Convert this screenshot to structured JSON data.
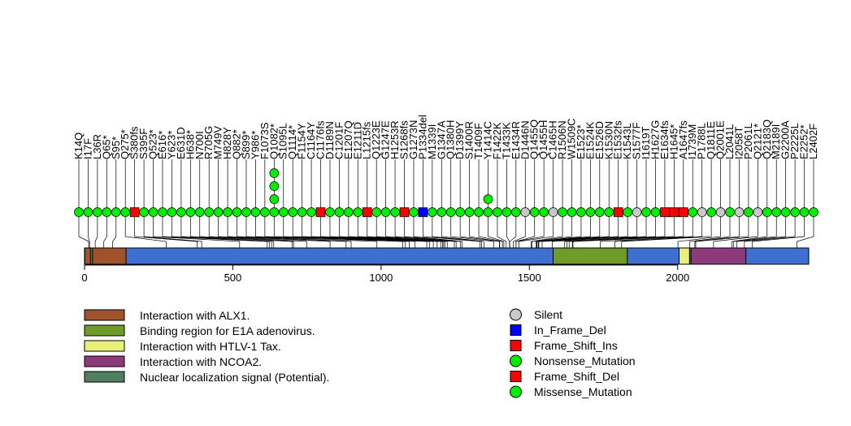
{
  "chart_data": {
    "type": "lollipop",
    "title": "",
    "xlabel": "",
    "ylabel": "",
    "xlim": [
      0,
      2442
    ],
    "x_ticks": [
      0,
      500,
      1000,
      1500,
      2000
    ],
    "x_tick_labels": [
      "0",
      "500",
      "1000",
      "1500",
      "2000"
    ],
    "protein_length": 2442,
    "domains": [
      {
        "name": "Interaction with ALX1.",
        "start": 1,
        "end": 140,
        "color": "#a0522d"
      },
      {
        "name": "Binding region for E1A adenovirus.",
        "start": 1580,
        "end": 1830,
        "color": "#6e9b2a"
      },
      {
        "name": "Interaction with HTLV-1 Tax.",
        "start": 2005,
        "end": 2040,
        "color": "#e8f07a"
      },
      {
        "name": "Interaction with NCOA2.",
        "start": 2045,
        "end": 2230,
        "color": "#8b3a7a"
      },
      {
        "name": "Nuclear localization signal (Potential).",
        "start": 20,
        "end": 27,
        "color": "#4f7f5f"
      }
    ],
    "backbone_color": "#3f6fcf",
    "mutation_types": [
      {
        "name": "Silent",
        "shape": "circle",
        "color": "#c8c8c8"
      },
      {
        "name": "In_Frame_Del",
        "shape": "square",
        "color": "#0000ff"
      },
      {
        "name": "Frame_Shift_Ins",
        "shape": "square",
        "color": "#ff0000"
      },
      {
        "name": "Nonsense_Mutation",
        "shape": "circle",
        "color": "#00ee00"
      },
      {
        "name": "Frame_Shift_Del",
        "shape": "square",
        "color": "#ff0000"
      },
      {
        "name": "Missense_Mutation",
        "shape": "circle",
        "color": "#00ee00"
      }
    ],
    "mutations": [
      {
        "label": "K14Q",
        "position": 14,
        "type": "Missense_Mutation",
        "count": 1
      },
      {
        "label": "I17F",
        "position": 17,
        "type": "Missense_Mutation",
        "count": 1
      },
      {
        "label": "L36R",
        "position": 36,
        "type": "Missense_Mutation",
        "count": 1
      },
      {
        "label": "Q65*",
        "position": 65,
        "type": "Nonsense_Mutation",
        "count": 1
      },
      {
        "label": "S95*",
        "position": 95,
        "type": "Nonsense_Mutation",
        "count": 1
      },
      {
        "label": "Q275*",
        "position": 275,
        "type": "Nonsense_Mutation",
        "count": 1
      },
      {
        "label": "S380fs",
        "position": 380,
        "type": "Frame_Shift_Del",
        "count": 1
      },
      {
        "label": "S395F",
        "position": 395,
        "type": "Missense_Mutation",
        "count": 1
      },
      {
        "label": "Q523*",
        "position": 523,
        "type": "Nonsense_Mutation",
        "count": 1
      },
      {
        "label": "E616*",
        "position": 616,
        "type": "Nonsense_Mutation",
        "count": 1
      },
      {
        "label": "Y623*",
        "position": 623,
        "type": "Nonsense_Mutation",
        "count": 1
      },
      {
        "label": "E631D",
        "position": 631,
        "type": "Missense_Mutation",
        "count": 1
      },
      {
        "label": "H638*",
        "position": 638,
        "type": "Nonsense_Mutation",
        "count": 1
      },
      {
        "label": "N700I",
        "position": 700,
        "type": "Missense_Mutation",
        "count": 1
      },
      {
        "label": "R705G",
        "position": 705,
        "type": "Missense_Mutation",
        "count": 1
      },
      {
        "label": "M749V",
        "position": 749,
        "type": "Missense_Mutation",
        "count": 1
      },
      {
        "label": "H828Y",
        "position": 828,
        "type": "Missense_Mutation",
        "count": 1
      },
      {
        "label": "Q882*",
        "position": 882,
        "type": "Nonsense_Mutation",
        "count": 1
      },
      {
        "label": "S899*",
        "position": 899,
        "type": "Nonsense_Mutation",
        "count": 1
      },
      {
        "label": "Y986*",
        "position": 986,
        "type": "Nonsense_Mutation",
        "count": 1
      },
      {
        "label": "F1073S",
        "position": 1073,
        "type": "Missense_Mutation",
        "count": 1
      },
      {
        "label": "Q1082*",
        "position": 1082,
        "type": "Nonsense_Mutation",
        "count": 4
      },
      {
        "label": "S1095L",
        "position": 1095,
        "type": "Missense_Mutation",
        "count": 1
      },
      {
        "label": "Q1114*",
        "position": 1114,
        "type": "Nonsense_Mutation",
        "count": 1
      },
      {
        "label": "F1154Y",
        "position": 1154,
        "type": "Missense_Mutation",
        "count": 1
      },
      {
        "label": "C1164Y",
        "position": 1164,
        "type": "Missense_Mutation",
        "count": 1
      },
      {
        "label": "C1176fs",
        "position": 1176,
        "type": "Frame_Shift_Del",
        "count": 1
      },
      {
        "label": "D1189N",
        "position": 1189,
        "type": "Missense_Mutation",
        "count": 1
      },
      {
        "label": "C1201F",
        "position": 1201,
        "type": "Missense_Mutation",
        "count": 1
      },
      {
        "label": "E1207Q",
        "position": 1207,
        "type": "Missense_Mutation",
        "count": 1
      },
      {
        "label": "E1211D",
        "position": 1211,
        "type": "Missense_Mutation",
        "count": 1
      },
      {
        "label": "L1215fs",
        "position": 1215,
        "type": "Frame_Shift_Del",
        "count": 1
      },
      {
        "label": "Q1223E",
        "position": 1223,
        "type": "Missense_Mutation",
        "count": 1
      },
      {
        "label": "G1247E",
        "position": 1247,
        "type": "Missense_Mutation",
        "count": 1
      },
      {
        "label": "H1253R",
        "position": 1253,
        "type": "Missense_Mutation",
        "count": 1
      },
      {
        "label": "S1268fs",
        "position": 1268,
        "type": "Frame_Shift_Del",
        "count": 1
      },
      {
        "label": "G1273N",
        "position": 1273,
        "type": "Missense_Mutation",
        "count": 1
      },
      {
        "label": "P1334del",
        "position": 1334,
        "type": "In_Frame_Del",
        "count": 1
      },
      {
        "label": "M1339I",
        "position": 1339,
        "type": "Missense_Mutation",
        "count": 1
      },
      {
        "label": "G1347A",
        "position": 1347,
        "type": "Missense_Mutation",
        "count": 1
      },
      {
        "label": "Q1380H",
        "position": 1380,
        "type": "Missense_Mutation",
        "count": 1
      },
      {
        "label": "D1399Y",
        "position": 1399,
        "type": "Missense_Mutation",
        "count": 1
      },
      {
        "label": "S1400R",
        "position": 1400,
        "type": "Missense_Mutation",
        "count": 1
      },
      {
        "label": "T1409F",
        "position": 1409,
        "type": "Missense_Mutation",
        "count": 1
      },
      {
        "label": "Y1414C",
        "position": 1414,
        "type": "Missense_Mutation",
        "count": 2
      },
      {
        "label": "F1422K",
        "position": 1422,
        "type": "Missense_Mutation",
        "count": 1
      },
      {
        "label": "T1433K",
        "position": 1433,
        "type": "Missense_Mutation",
        "count": 1
      },
      {
        "label": "E1434R",
        "position": 1434,
        "type": "Missense_Mutation",
        "count": 1
      },
      {
        "label": "D1446N",
        "position": 1446,
        "type": "Silent",
        "count": 1
      },
      {
        "label": "Q1455Q",
        "position": 1455,
        "type": "Missense_Mutation",
        "count": 1
      },
      {
        "label": "Q1455H",
        "position": 1455,
        "type": "Missense_Mutation",
        "count": 1
      },
      {
        "label": "C1465H",
        "position": 1465,
        "type": "Silent",
        "count": 1
      },
      {
        "label": "R1506N",
        "position": 1506,
        "type": "Missense_Mutation",
        "count": 1
      },
      {
        "label": "W1509C",
        "position": 1509,
        "type": "Missense_Mutation",
        "count": 1
      },
      {
        "label": "E1523*",
        "position": 1523,
        "type": "Nonsense_Mutation",
        "count": 1
      },
      {
        "label": "E1524K",
        "position": 1524,
        "type": "Missense_Mutation",
        "count": 1
      },
      {
        "label": "E1526D",
        "position": 1526,
        "type": "Missense_Mutation",
        "count": 1
      },
      {
        "label": "K1530N",
        "position": 1530,
        "type": "Missense_Mutation",
        "count": 1
      },
      {
        "label": "E1532fs",
        "position": 1532,
        "type": "Frame_Shift_Del",
        "count": 1
      },
      {
        "label": "K1543L",
        "position": 1543,
        "type": "Missense_Mutation",
        "count": 1
      },
      {
        "label": "S1577F",
        "position": 1577,
        "type": "Silent",
        "count": 1
      },
      {
        "label": "I1619T",
        "position": 1619,
        "type": "Missense_Mutation",
        "count": 1
      },
      {
        "label": "H1627G",
        "position": 1627,
        "type": "Missense_Mutation",
        "count": 1
      },
      {
        "label": "E1634fs",
        "position": 1634,
        "type": "Frame_Shift_Del",
        "count": 1
      },
      {
        "label": "H1645*",
        "position": 1645,
        "type": "Frame_Shift_Ins",
        "count": 1
      },
      {
        "label": "A1647fs",
        "position": 1647,
        "type": "Frame_Shift_Ins",
        "count": 1
      },
      {
        "label": "I1739M",
        "position": 1739,
        "type": "Missense_Mutation",
        "count": 1
      },
      {
        "label": "P1788L",
        "position": 1788,
        "type": "Silent",
        "count": 1
      },
      {
        "label": "Q1811E",
        "position": 1811,
        "type": "Missense_Mutation",
        "count": 1
      },
      {
        "label": "Q2001E",
        "position": 2001,
        "type": "Silent",
        "count": 1
      },
      {
        "label": "L2041L",
        "position": 2041,
        "type": "Missense_Mutation",
        "count": 1
      },
      {
        "label": "I2058T",
        "position": 2058,
        "type": "Silent",
        "count": 1
      },
      {
        "label": "P2061L",
        "position": 2061,
        "type": "Missense_Mutation",
        "count": 1
      },
      {
        "label": "Q2121*",
        "position": 2121,
        "type": "Silent",
        "count": 1
      },
      {
        "label": "Q2183Q",
        "position": 2183,
        "type": "Missense_Mutation",
        "count": 1
      },
      {
        "label": "M2189I",
        "position": 2189,
        "type": "Missense_Mutation",
        "count": 1
      },
      {
        "label": "G2200A",
        "position": 2200,
        "type": "Missense_Mutation",
        "count": 1
      },
      {
        "label": "P2225L",
        "position": 2225,
        "type": "Missense_Mutation",
        "count": 1
      },
      {
        "label": "E2252*",
        "position": 2252,
        "type": "Nonsense_Mutation",
        "count": 1
      },
      {
        "label": "L2402F",
        "position": 2402,
        "type": "Missense_Mutation",
        "count": 1
      }
    ],
    "legend_domains_title": "",
    "legend_mutations_title": ""
  }
}
